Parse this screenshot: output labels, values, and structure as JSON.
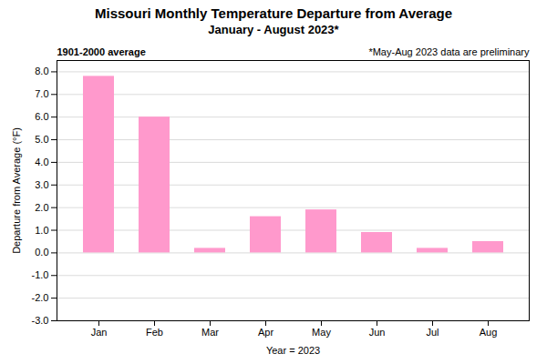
{
  "chart_data": {
    "type": "bar",
    "title": "Missouri Monthly Temperature Departure from Average",
    "subtitle": "January - August 2023*",
    "xlabel": "Year = 2023",
    "ylabel": "Departure from Average (°F)",
    "categories": [
      "Jan",
      "Feb",
      "Mar",
      "Apr",
      "May",
      "Jun",
      "Jul",
      "Aug"
    ],
    "values": [
      7.8,
      6.0,
      0.2,
      1.6,
      1.9,
      0.9,
      0.2,
      0.5
    ],
    "color": "#FF99CC",
    "ylim": [
      -3.0,
      8.5
    ],
    "yticks": [
      {
        "value": -3.0,
        "label": "-3.0"
      },
      {
        "value": -2.0,
        "label": "-2.0"
      },
      {
        "value": -1.0,
        "label": "-1.0"
      },
      {
        "value": 0.0,
        "label": "0.0"
      },
      {
        "value": 1.0,
        "label": "1.0"
      },
      {
        "value": 2.0,
        "label": "2.0"
      },
      {
        "value": 3.0,
        "label": "3.0"
      },
      {
        "value": 4.0,
        "label": "4.0"
      },
      {
        "value": 5.0,
        "label": "5.0"
      },
      {
        "value": 6.0,
        "label": "6.0"
      },
      {
        "value": 7.0,
        "label": "7.0"
      },
      {
        "value": 8.0,
        "label": "8.0"
      }
    ],
    "grid": true,
    "annotations": [
      "1901-2000 average",
      "*May-Aug 2023 data are preliminary"
    ]
  }
}
